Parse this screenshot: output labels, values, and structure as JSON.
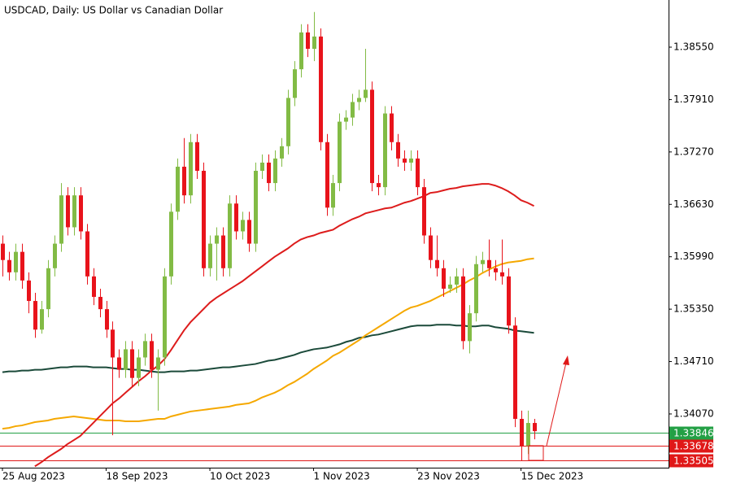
{
  "chart_data": {
    "type": "candlestick",
    "title": "USDCAD, Daily:  US Dollar vs Canadian Dollar",
    "categories": [
      "25 Aug 2023",
      null,
      null,
      null,
      null,
      null,
      null,
      null,
      null,
      null,
      null,
      null,
      null,
      null,
      null,
      null,
      "18 Sep 2023",
      null,
      null,
      null,
      null,
      null,
      null,
      null,
      null,
      null,
      null,
      null,
      null,
      null,
      null,
      null,
      "10 Oct 2023",
      null,
      null,
      null,
      null,
      null,
      null,
      null,
      null,
      null,
      null,
      null,
      null,
      null,
      null,
      null,
      "1 Nov 2023",
      null,
      null,
      null,
      null,
      null,
      null,
      null,
      null,
      null,
      null,
      null,
      null,
      null,
      null,
      null,
      "23 Nov 2023",
      null,
      null,
      null,
      null,
      null,
      null,
      null,
      null,
      null,
      null,
      null,
      null,
      null,
      null,
      null,
      "15 Dec 2023",
      null,
      null
    ],
    "open": [
      1.3615,
      1.3595,
      1.358,
      1.3605,
      1.357,
      1.3545,
      1.351,
      1.3535,
      1.3585,
      1.3615,
      1.3674,
      1.3635,
      1.3674,
      1.363,
      1.3575,
      1.355,
      1.3535,
      1.351,
      1.3476,
      1.3461,
      1.3486,
      1.3451,
      1.3476,
      1.3496,
      1.3461,
      1.3476,
      1.3575,
      1.3654,
      1.3709,
      1.3674,
      1.3739,
      1.3704,
      1.3585,
      1.3615,
      1.3625,
      1.3585,
      1.3664,
      1.363,
      1.3644,
      1.3615,
      1.3704,
      1.3714,
      1.3689,
      1.3719,
      1.3734,
      1.3793,
      1.3828,
      1.3873,
      1.3853,
      1.3868,
      1.3739,
      1.3659,
      1.3689,
      1.3764,
      1.3769,
      1.3788,
      1.3793,
      1.3803,
      1.3689,
      1.3684,
      1.3774,
      1.3739,
      1.3719,
      1.3714,
      1.3719,
      1.3684,
      1.3625,
      1.3595,
      1.3585,
      1.356,
      1.3565,
      1.3575,
      1.3496,
      1.353,
      1.359,
      1.3595,
      1.3585,
      1.358,
      1.3575,
      1.3515,
      1.3401,
      1.3368,
      1.3396
    ],
    "high": [
      1.3625,
      1.3605,
      1.3615,
      1.3615,
      1.358,
      1.3555,
      1.3545,
      1.3595,
      1.3625,
      1.3689,
      1.3684,
      1.3684,
      1.3684,
      1.3639,
      1.3585,
      1.356,
      1.3545,
      1.352,
      1.3486,
      1.3496,
      1.3496,
      1.3486,
      1.3505,
      1.3505,
      1.3486,
      1.3585,
      1.3664,
      1.3719,
      1.3744,
      1.3749,
      1.3749,
      1.3714,
      1.3625,
      1.3635,
      1.3635,
      1.3674,
      1.3674,
      1.3654,
      1.3654,
      1.3714,
      1.3724,
      1.3724,
      1.3729,
      1.3744,
      1.3803,
      1.3838,
      1.3883,
      1.3883,
      1.3898,
      1.3878,
      1.3749,
      1.3699,
      1.3774,
      1.3778,
      1.3798,
      1.3803,
      1.3853,
      1.3813,
      1.3699,
      1.3783,
      1.3783,
      1.3749,
      1.3729,
      1.3729,
      1.3729,
      1.3694,
      1.3635,
      1.3625,
      1.3595,
      1.3575,
      1.3585,
      1.3585,
      1.354,
      1.36,
      1.3605,
      1.362,
      1.3595,
      1.362,
      1.3585,
      1.3525,
      1.3411,
      1.3411,
      1.3401
    ],
    "low": [
      1.3575,
      1.357,
      1.357,
      1.356,
      1.353,
      1.35,
      1.3505,
      1.3525,
      1.3575,
      1.3605,
      1.3625,
      1.3625,
      1.362,
      1.3565,
      1.354,
      1.3525,
      1.35,
      1.3381,
      1.3451,
      1.3451,
      1.3441,
      1.3441,
      1.3466,
      1.3451,
      1.3411,
      1.3466,
      1.3565,
      1.3644,
      1.3664,
      1.3664,
      1.3694,
      1.3575,
      1.3575,
      1.357,
      1.3575,
      1.3575,
      1.362,
      1.362,
      1.3605,
      1.3605,
      1.3694,
      1.3679,
      1.3679,
      1.3709,
      1.3724,
      1.3783,
      1.3818,
      1.3843,
      1.3838,
      1.3729,
      1.3649,
      1.3649,
      1.3679,
      1.3754,
      1.3759,
      1.3778,
      1.3788,
      1.3679,
      1.3674,
      1.3674,
      1.3729,
      1.3709,
      1.3704,
      1.3704,
      1.3674,
      1.3615,
      1.3585,
      1.3575,
      1.355,
      1.3555,
      1.3555,
      1.3486,
      1.3481,
      1.352,
      1.358,
      1.3575,
      1.357,
      1.3565,
      1.3505,
      1.3391,
      1.335,
      1.3358,
      1.3376
    ],
    "close": [
      1.3595,
      1.358,
      1.3605,
      1.357,
      1.3545,
      1.351,
      1.3535,
      1.3585,
      1.3615,
      1.3674,
      1.3635,
      1.3674,
      1.363,
      1.3575,
      1.355,
      1.3535,
      1.351,
      1.3476,
      1.3461,
      1.3486,
      1.3451,
      1.3476,
      1.3496,
      1.3461,
      1.3476,
      1.3575,
      1.3654,
      1.3709,
      1.3674,
      1.3739,
      1.3704,
      1.3585,
      1.3615,
      1.3625,
      1.3585,
      1.3664,
      1.363,
      1.3644,
      1.3615,
      1.3704,
      1.3714,
      1.3689,
      1.3719,
      1.3734,
      1.3793,
      1.3828,
      1.3873,
      1.3853,
      1.3868,
      1.3739,
      1.3659,
      1.3689,
      1.3764,
      1.3769,
      1.3788,
      1.3793,
      1.3803,
      1.3689,
      1.3684,
      1.3774,
      1.3739,
      1.3719,
      1.3714,
      1.3719,
      1.3684,
      1.3625,
      1.3595,
      1.3585,
      1.356,
      1.3565,
      1.3575,
      1.3496,
      1.353,
      1.359,
      1.3595,
      1.3585,
      1.358,
      1.3575,
      1.3515,
      1.3401,
      1.3368,
      1.3396,
      1.3386
    ],
    "up_color": "#82bb45",
    "down_color": "#e8131b",
    "overlays": [
      {
        "color": "#1b4a3a",
        "values": [
          1.3458,
          1.3459,
          1.3459,
          1.346,
          1.346,
          1.3461,
          1.3461,
          1.3462,
          1.3463,
          1.3464,
          1.3464,
          1.3465,
          1.3465,
          1.3465,
          1.3464,
          1.3464,
          1.3464,
          1.3463,
          1.3462,
          1.3462,
          1.3461,
          1.3461,
          1.346,
          1.3459,
          1.3458,
          1.3458,
          1.3459,
          1.3459,
          1.3459,
          1.346,
          1.346,
          1.3461,
          1.3462,
          1.3463,
          1.3464,
          1.3464,
          1.3465,
          1.3466,
          1.3467,
          1.3468,
          1.347,
          1.3472,
          1.3473,
          1.3475,
          1.3477,
          1.3479,
          1.3482,
          1.3484,
          1.3486,
          1.3487,
          1.3488,
          1.349,
          1.3492,
          1.3495,
          1.3497,
          1.35,
          1.3501,
          1.3503,
          1.3504,
          1.3506,
          1.3508,
          1.351,
          1.3512,
          1.3514,
          1.3515,
          1.3515,
          1.3515,
          1.3516,
          1.3516,
          1.3516,
          1.3515,
          1.3515,
          1.3514,
          1.3514,
          1.3515,
          1.3515,
          1.3513,
          1.3512,
          1.3511,
          1.3509,
          1.3508,
          1.3507,
          1.3506
        ]
      },
      {
        "color": "#f5a800",
        "values": [
          1.3389,
          1.339,
          1.3392,
          1.3393,
          1.3395,
          1.3397,
          1.3398,
          1.3399,
          1.3401,
          1.3402,
          1.3403,
          1.3404,
          1.3403,
          1.3402,
          1.3401,
          1.34,
          1.3399,
          1.3399,
          1.3399,
          1.3398,
          1.3398,
          1.3398,
          1.3399,
          1.34,
          1.3401,
          1.3401,
          1.3404,
          1.3406,
          1.3408,
          1.341,
          1.3411,
          1.3412,
          1.3413,
          1.3414,
          1.3415,
          1.3416,
          1.3418,
          1.3419,
          1.342,
          1.3423,
          1.3427,
          1.343,
          1.3433,
          1.3437,
          1.3442,
          1.3446,
          1.3451,
          1.3456,
          1.3462,
          1.3467,
          1.3472,
          1.3478,
          1.3482,
          1.3487,
          1.3492,
          1.3497,
          1.3503,
          1.3508,
          1.3513,
          1.3518,
          1.3523,
          1.3528,
          1.3533,
          1.3537,
          1.3539,
          1.3542,
          1.3545,
          1.3549,
          1.3553,
          1.3557,
          1.3561,
          1.3565,
          1.357,
          1.3574,
          1.3579,
          1.3583,
          1.3587,
          1.359,
          1.3592,
          1.3593,
          1.3594,
          1.3596,
          1.3597
        ]
      },
      {
        "color": "#dd1c1c",
        "values": [
          null,
          null,
          null,
          null,
          null,
          1.3343,
          1.3348,
          1.3354,
          1.3359,
          1.3364,
          1.337,
          1.3375,
          1.338,
          1.3388,
          1.3396,
          1.3404,
          1.3412,
          1.342,
          1.3426,
          1.3433,
          1.344,
          1.3447,
          1.3453,
          1.346,
          1.3466,
          1.3474,
          1.3485,
          1.3497,
          1.3509,
          1.3519,
          1.3527,
          1.3535,
          1.3543,
          1.3549,
          1.3554,
          1.3559,
          1.3564,
          1.3569,
          1.3575,
          1.3581,
          1.3587,
          1.3593,
          1.3599,
          1.3604,
          1.3609,
          1.3615,
          1.362,
          1.3623,
          1.3625,
          1.3628,
          1.363,
          1.3632,
          1.3637,
          1.3641,
          1.3645,
          1.3648,
          1.3652,
          1.3654,
          1.3656,
          1.3658,
          1.3659,
          1.3662,
          1.3665,
          1.3667,
          1.367,
          1.3673,
          1.3677,
          1.3678,
          1.368,
          1.3682,
          1.3683,
          1.3685,
          1.3686,
          1.3687,
          1.3688,
          1.3688,
          1.3686,
          1.3683,
          1.3679,
          1.3674,
          1.3668,
          1.3665,
          1.3661
        ]
      }
    ],
    "levels": [
      {
        "value": 1.33846,
        "color": "#23a045"
      },
      {
        "value": 1.33678,
        "color": "#e01818"
      },
      {
        "value": 1.33505,
        "color": "#e01818"
      }
    ],
    "ylim": [
      1.33414,
      1.39126
    ],
    "yticks": [
      {
        "value": 1.3855,
        "label": "1.38550"
      },
      {
        "value": 1.3791,
        "label": "1.37910"
      },
      {
        "value": 1.3727,
        "label": "1.37270"
      },
      {
        "value": 1.3663,
        "label": "1.36630"
      },
      {
        "value": 1.3599,
        "label": "1.35990"
      },
      {
        "value": 1.3535,
        "label": "1.35350"
      },
      {
        "value": 1.3471,
        "label": "1.34710"
      },
      {
        "value": 1.3407,
        "label": "1.34070"
      }
    ]
  }
}
